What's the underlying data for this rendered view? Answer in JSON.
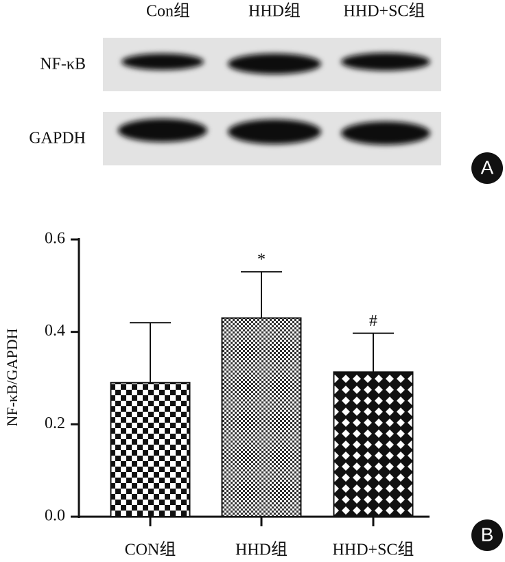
{
  "blot": {
    "columns": [
      "Con组",
      "HHD组",
      "HHD+SC组"
    ],
    "rows": [
      "NF-κB",
      "GAPDH"
    ],
    "panel": "A"
  },
  "chart_data": {
    "type": "bar",
    "panel": "B",
    "ylabel": "NF-κB/GAPDH",
    "categories": [
      "CON组",
      "HHD组",
      "HHD+SC组"
    ],
    "values": [
      0.29,
      0.43,
      0.313
    ],
    "errors": [
      0.13,
      0.1,
      0.084
    ],
    "annotations": [
      null,
      "*",
      "#"
    ],
    "ylim": [
      0,
      0.6
    ],
    "yticks": [
      {
        "value": 0,
        "label": "0.0"
      },
      0.2,
      0.4,
      0.6
    ],
    "grid": false
  }
}
